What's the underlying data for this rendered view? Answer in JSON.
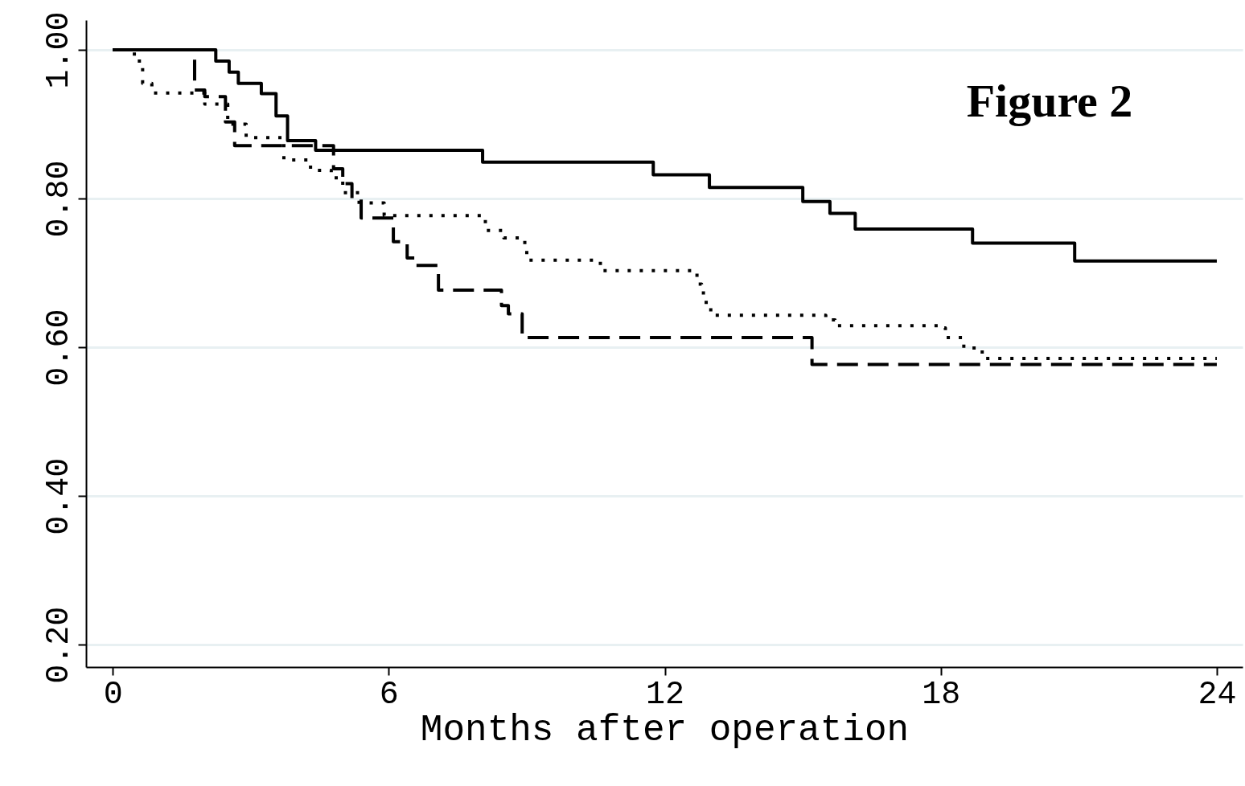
{
  "chart_data": {
    "type": "step",
    "xlabel": "Months after operation",
    "annotations": [
      "Figure 2"
    ],
    "xlim": [
      -0.58,
      24.56
    ],
    "ylim": [
      0.17,
      1.04
    ],
    "xticks": [
      0,
      6,
      12,
      18,
      24
    ],
    "yticks": [
      {
        "value": 0.2,
        "label": "0.20"
      },
      {
        "value": 0.4,
        "label": "0.40"
      },
      {
        "value": 0.6,
        "label": "0.60"
      },
      {
        "value": 0.8,
        "label": "0.80"
      },
      {
        "value": 1.0,
        "label": "1.00"
      }
    ],
    "grid": "y",
    "series": [
      {
        "color": "#000000",
        "line_style": "solid",
        "x": [
          0,
          2.24,
          2.53,
          2.73,
          3.23,
          3.55,
          3.8,
          4.41,
          8.04,
          11.75,
          12.97,
          15.0,
          15.59,
          16.14,
          18.69,
          20.91,
          24
        ],
        "values": [
          1.0,
          0.985,
          0.97,
          0.955,
          0.941,
          0.911,
          0.878,
          0.865,
          0.849,
          0.832,
          0.815,
          0.796,
          0.78,
          0.759,
          0.74,
          0.716,
          0.716
        ]
      },
      {
        "color": "#000000",
        "line_style": "dashed",
        "x": [
          0,
          1.78,
          2.0,
          2.45,
          2.65,
          4.8,
          5.0,
          5.2,
          5.4,
          6.1,
          6.4,
          6.6,
          7.08,
          8.45,
          8.6,
          8.9,
          15.2,
          24
        ],
        "values": [
          1.0,
          0.946,
          0.937,
          0.903,
          0.871,
          0.84,
          0.82,
          0.795,
          0.774,
          0.742,
          0.72,
          0.71,
          0.677,
          0.656,
          0.645,
          0.613,
          0.577,
          0.577
        ]
      },
      {
        "color": "#000000",
        "line_style": "dotted",
        "x": [
          0,
          0.47,
          0.65,
          0.85,
          2.0,
          2.5,
          2.9,
          3.72,
          4.3,
          4.75,
          5.0,
          5.4,
          5.9,
          8.1,
          8.5,
          8.85,
          9.0,
          10.6,
          12.7,
          12.8,
          12.9,
          13.0,
          15.5,
          15.7,
          18.05,
          18.1,
          18.5,
          18.9,
          24
        ],
        "values": [
          1.0,
          0.985,
          0.955,
          0.942,
          0.927,
          0.9,
          0.882,
          0.852,
          0.838,
          0.828,
          0.808,
          0.794,
          0.777,
          0.757,
          0.747,
          0.741,
          0.717,
          0.703,
          0.685,
          0.673,
          0.657,
          0.643,
          0.637,
          0.629,
          0.626,
          0.613,
          0.599,
          0.585,
          0.585
        ]
      }
    ]
  }
}
